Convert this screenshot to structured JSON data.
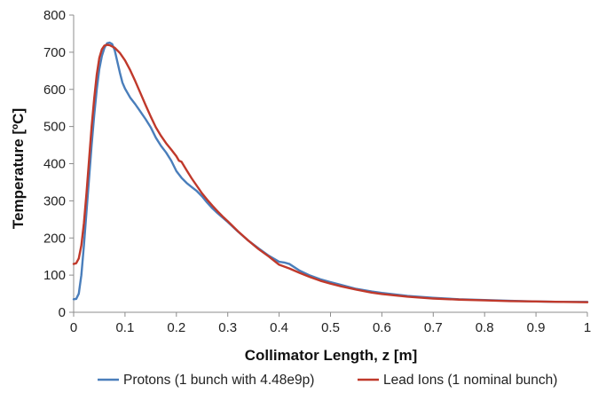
{
  "chart_data": {
    "type": "line",
    "xlabel": "Collimator Length, z [m]",
    "ylabel": "Temperature [ºC]",
    "xlim": [
      0,
      1
    ],
    "ylim": [
      0,
      800
    ],
    "x_ticks": [
      "0",
      "0.1",
      "0.2",
      "0.3",
      "0.4",
      "0.5",
      "0.6",
      "0.7",
      "0.8",
      "0.9",
      "1"
    ],
    "y_ticks": [
      "0",
      "100",
      "200",
      "300",
      "400",
      "500",
      "600",
      "700",
      "800"
    ],
    "grid": false,
    "legend_position": "bottom",
    "series": [
      {
        "name": "Protons (1 bunch with 4.48e9p)",
        "color": "#4a7ebb",
        "points": [
          [
            0.0,
            35
          ],
          [
            0.005,
            36
          ],
          [
            0.01,
            50
          ],
          [
            0.015,
            100
          ],
          [
            0.02,
            180
          ],
          [
            0.025,
            270
          ],
          [
            0.03,
            360
          ],
          [
            0.035,
            450
          ],
          [
            0.04,
            530
          ],
          [
            0.045,
            600
          ],
          [
            0.05,
            655
          ],
          [
            0.055,
            690
          ],
          [
            0.06,
            712
          ],
          [
            0.065,
            724
          ],
          [
            0.07,
            726
          ],
          [
            0.075,
            722
          ],
          [
            0.08,
            705
          ],
          [
            0.085,
            675
          ],
          [
            0.09,
            645
          ],
          [
            0.095,
            618
          ],
          [
            0.1,
            602
          ],
          [
            0.11,
            578
          ],
          [
            0.12,
            560
          ],
          [
            0.13,
            540
          ],
          [
            0.14,
            520
          ],
          [
            0.15,
            498
          ],
          [
            0.16,
            470
          ],
          [
            0.17,
            448
          ],
          [
            0.18,
            430
          ],
          [
            0.19,
            408
          ],
          [
            0.2,
            380
          ],
          [
            0.21,
            362
          ],
          [
            0.22,
            348
          ],
          [
            0.23,
            337
          ],
          [
            0.24,
            326
          ],
          [
            0.25,
            312
          ],
          [
            0.26,
            295
          ],
          [
            0.27,
            280
          ],
          [
            0.28,
            267
          ],
          [
            0.29,
            255
          ],
          [
            0.3,
            243
          ],
          [
            0.32,
            217
          ],
          [
            0.34,
            193
          ],
          [
            0.36,
            172
          ],
          [
            0.38,
            152
          ],
          [
            0.4,
            136
          ],
          [
            0.41,
            134
          ],
          [
            0.42,
            130
          ],
          [
            0.44,
            112
          ],
          [
            0.46,
            99
          ],
          [
            0.48,
            89
          ],
          [
            0.5,
            81
          ],
          [
            0.52,
            74
          ],
          [
            0.55,
            63
          ],
          [
            0.58,
            56
          ],
          [
            0.6,
            52
          ],
          [
            0.65,
            44
          ],
          [
            0.7,
            39
          ],
          [
            0.75,
            35
          ],
          [
            0.8,
            33
          ],
          [
            0.85,
            31
          ],
          [
            0.9,
            29
          ],
          [
            0.95,
            28
          ],
          [
            1.0,
            28
          ]
        ]
      },
      {
        "name": "Lead Ions (1 nominal bunch)",
        "color": "#c0392b",
        "points": [
          [
            0.0,
            130
          ],
          [
            0.005,
            132
          ],
          [
            0.01,
            145
          ],
          [
            0.015,
            180
          ],
          [
            0.02,
            240
          ],
          [
            0.025,
            320
          ],
          [
            0.03,
            410
          ],
          [
            0.035,
            500
          ],
          [
            0.04,
            575
          ],
          [
            0.045,
            640
          ],
          [
            0.05,
            685
          ],
          [
            0.055,
            708
          ],
          [
            0.06,
            718
          ],
          [
            0.065,
            720
          ],
          [
            0.07,
            719
          ],
          [
            0.08,
            712
          ],
          [
            0.09,
            698
          ],
          [
            0.1,
            678
          ],
          [
            0.11,
            652
          ],
          [
            0.12,
            622
          ],
          [
            0.13,
            590
          ],
          [
            0.14,
            558
          ],
          [
            0.15,
            527
          ],
          [
            0.16,
            498
          ],
          [
            0.17,
            475
          ],
          [
            0.18,
            455
          ],
          [
            0.19,
            438
          ],
          [
            0.2,
            420
          ],
          [
            0.205,
            408
          ],
          [
            0.21,
            405
          ],
          [
            0.22,
            382
          ],
          [
            0.23,
            360
          ],
          [
            0.24,
            340
          ],
          [
            0.25,
            320
          ],
          [
            0.26,
            303
          ],
          [
            0.27,
            287
          ],
          [
            0.28,
            272
          ],
          [
            0.29,
            258
          ],
          [
            0.3,
            245
          ],
          [
            0.32,
            218
          ],
          [
            0.34,
            193
          ],
          [
            0.36,
            170
          ],
          [
            0.38,
            150
          ],
          [
            0.4,
            128
          ],
          [
            0.42,
            118
          ],
          [
            0.44,
            106
          ],
          [
            0.46,
            95
          ],
          [
            0.48,
            85
          ],
          [
            0.5,
            77
          ],
          [
            0.52,
            70
          ],
          [
            0.55,
            61
          ],
          [
            0.58,
            53
          ],
          [
            0.6,
            49
          ],
          [
            0.65,
            42
          ],
          [
            0.7,
            37
          ],
          [
            0.75,
            34
          ],
          [
            0.8,
            32
          ],
          [
            0.85,
            30
          ],
          [
            0.9,
            29
          ],
          [
            0.95,
            28
          ],
          [
            1.0,
            27
          ]
        ]
      }
    ]
  }
}
